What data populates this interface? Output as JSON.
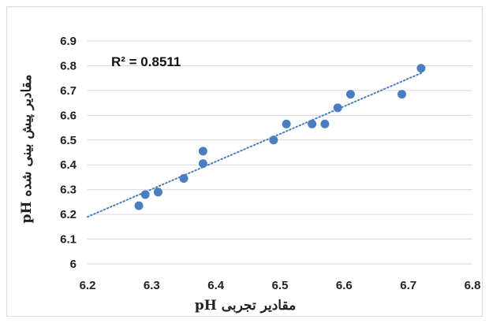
{
  "chart_data": {
    "type": "scatter",
    "xlabel": "مقادیر تجربی pH",
    "ylabel": "مقادیر پیش بینی شده pH",
    "xlim": [
      6.2,
      6.8
    ],
    "ylim": [
      6.0,
      6.9
    ],
    "x_ticks": [
      "6.2",
      "6.3",
      "6.4",
      "6.5",
      "6.6",
      "6.7",
      "6.8"
    ],
    "y_ticks": [
      "6",
      "6.1",
      "6.2",
      "6.3",
      "6.4",
      "6.5",
      "6.6",
      "6.7",
      "6.8",
      "6.9"
    ],
    "grid": "horizontal",
    "marker_color": "#4a7ebf",
    "trendline": {
      "type": "linear",
      "style": "dotted",
      "color": "#4a7ebf",
      "x_range": [
        6.2,
        6.72
      ],
      "y_range": [
        6.19,
        6.77
      ]
    },
    "annotation": "R² = 0.8511",
    "points": [
      {
        "x": 6.28,
        "y": 6.235
      },
      {
        "x": 6.29,
        "y": 6.28
      },
      {
        "x": 6.31,
        "y": 6.29
      },
      {
        "x": 6.35,
        "y": 6.345
      },
      {
        "x": 6.38,
        "y": 6.405
      },
      {
        "x": 6.38,
        "y": 6.455
      },
      {
        "x": 6.49,
        "y": 6.5
      },
      {
        "x": 6.51,
        "y": 6.565
      },
      {
        "x": 6.55,
        "y": 6.565
      },
      {
        "x": 6.57,
        "y": 6.565
      },
      {
        "x": 6.59,
        "y": 6.63
      },
      {
        "x": 6.61,
        "y": 6.685
      },
      {
        "x": 6.69,
        "y": 6.685
      },
      {
        "x": 6.72,
        "y": 6.79
      }
    ]
  }
}
